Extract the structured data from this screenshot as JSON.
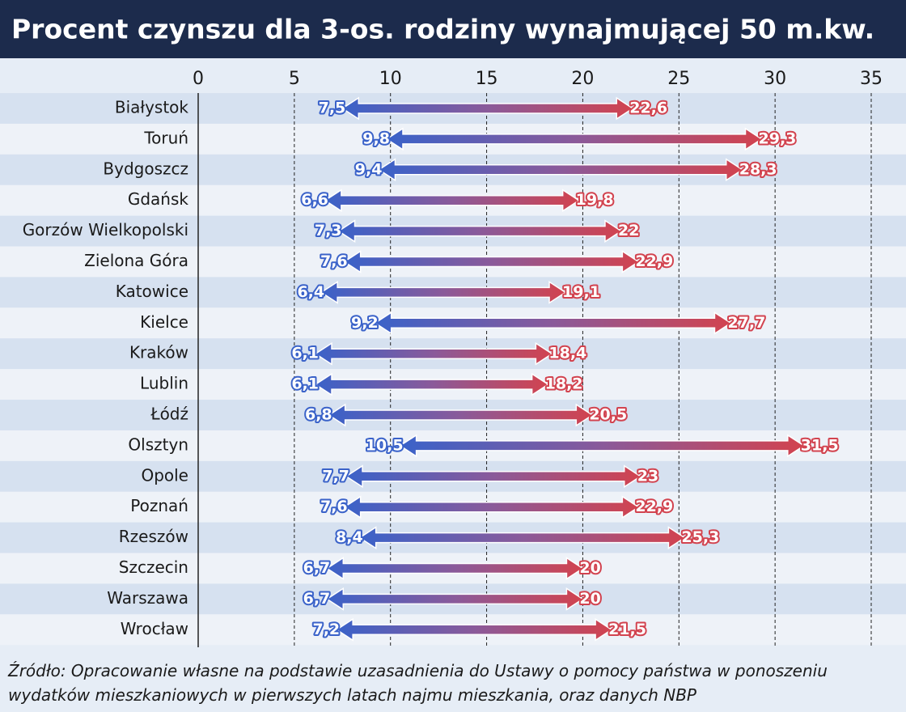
{
  "chart_data": {
    "type": "range-arrow",
    "title": "Procent czynszu dla 3-os. rodziny wynajmującej 50 m.kw.",
    "categories": [
      "Białystok",
      "Toruń",
      "Bydgoszcz",
      "Gdańsk",
      "Gorzów Wielkopolski",
      "Zielona Góra",
      "Katowice",
      "Kielce",
      "Kraków",
      "Lublin",
      "Łódź",
      "Olsztyn",
      "Opole",
      "Poznań",
      "Rzeszów",
      "Szczecin",
      "Warszawa",
      "Wrocław"
    ],
    "series": [
      {
        "color": "#3a62c9",
        "values": [
          7.5,
          9.8,
          9.4,
          6.6,
          7.3,
          7.6,
          6.4,
          9.2,
          6.1,
          6.1,
          6.8,
          10.5,
          7.7,
          7.6,
          8.4,
          6.7,
          6.7,
          7.2
        ],
        "value_labels": [
          "7,5",
          "9,8",
          "9,4",
          "6,6",
          "7,3",
          "7,6",
          "6,4",
          "9,2",
          "6,1",
          "6,1",
          "6,8",
          "10,5",
          "7,7",
          "7,6",
          "8,4",
          "6,7",
          "6,7",
          "7,2"
        ]
      },
      {
        "color": "#d2434f",
        "values": [
          22.6,
          29.3,
          28.3,
          19.8,
          22,
          22.9,
          19.1,
          27.7,
          18.4,
          18.2,
          20.5,
          31.5,
          23,
          22.9,
          25.3,
          20,
          20,
          21.5
        ],
        "value_labels": [
          "22,6",
          "29,3",
          "28,3",
          "19,8",
          "22",
          "22,9",
          "19,1",
          "27,7",
          "18,4",
          "18,2",
          "20,5",
          "31,5",
          "23",
          "22,9",
          "25,3",
          "20",
          "20",
          "21,5"
        ]
      }
    ],
    "xlim": [
      0,
      35
    ],
    "xticks": [
      0,
      5,
      10,
      15,
      20,
      25,
      30,
      35
    ],
    "grid": true,
    "source": "Źródło: Opracowanie własne na podstawie uzasadnienia do Ustawy o pomocy państwa w ponoszeniu wydatków mieszkaniowych w pierwszych latach najmu mieszkania, oraz danych NBP"
  }
}
